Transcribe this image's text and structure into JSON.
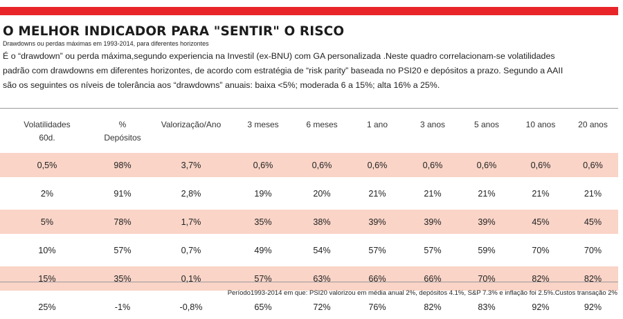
{
  "title": "O MELHOR INDICADOR PARA \"SENTIR\" O RISCO",
  "subtitle": "Drawdowns ou perdas máximas em 1993-2014, para diferentes horizontes",
  "intro": [
    "É o “drawdown” ou perda máxima,segundo experiencia na Investil (ex-BNU) com GA personalizada .Neste quadro correlacionam-se  volatilidades",
    "padrão com drawdowns em diferentes horizontes, de acordo com estratégia de “risk parity” baseada no PSI20 e depósitos a prazo. Segundo a AAII",
    "são os seguintes os níveis de tolerância aos “drawdowns” anuais: baixa <5%; moderada 6 a 15%; alta 16% a 25%."
  ],
  "table": {
    "headers": [
      [
        "Volatilidades",
        "60d."
      ],
      [
        "%",
        "Depósitos"
      ],
      [
        "Valorização/Ano"
      ],
      [
        "3 meses"
      ],
      [
        "6 meses"
      ],
      [
        "1 ano"
      ],
      [
        "3 anos"
      ],
      [
        "5 anos"
      ],
      [
        "10 anos"
      ],
      [
        "20 anos"
      ]
    ],
    "rows": [
      [
        "0,5%",
        "98%",
        "3,7%",
        "0,6%",
        "0,6%",
        "0,6%",
        "0,6%",
        "0,6%",
        "0,6%",
        "0,6%"
      ],
      [
        "2%",
        "91%",
        "2,8%",
        "19%",
        "20%",
        "21%",
        "21%",
        "21%",
        "21%",
        "21%"
      ],
      [
        "5%",
        "78%",
        "1,7%",
        "35%",
        "38%",
        "39%",
        "39%",
        "39%",
        "45%",
        "45%"
      ],
      [
        "10%",
        "57%",
        "0,7%",
        "49%",
        "54%",
        "57%",
        "57%",
        "59%",
        "70%",
        "70%"
      ],
      [
        "15%",
        "35%",
        "0,1%",
        "57%",
        "63%",
        "66%",
        "66%",
        "70%",
        "82%",
        "82%"
      ],
      [
        "25%",
        "-1%",
        "-0,8%",
        "65%",
        "72%",
        "76%",
        "82%",
        "83%",
        "92%",
        "92%"
      ]
    ]
  },
  "footer": "Período1993-2014 em que:  PSI20 valorizou em média anual 2%,  depósitos 4.1%,  S&P 7.3%  e inflação foi 2.5%.Custos transação 2%",
  "colors": {
    "accent": "#e8262a",
    "row_shade": "#f9d4c7",
    "rule": "#9a9a9a"
  }
}
